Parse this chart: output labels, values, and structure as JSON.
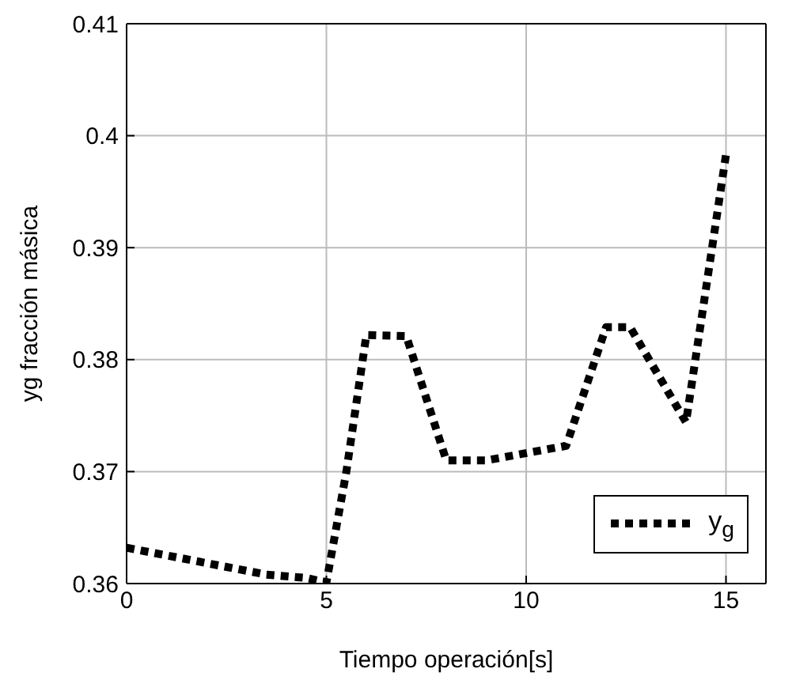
{
  "chart_data": {
    "type": "line",
    "xlabel": "Tiempo operación[s]",
    "ylabel": "yg fracción másica",
    "x": [
      0,
      3.5,
      4.5,
      5,
      5.5,
      6,
      7,
      8,
      9,
      11,
      12,
      12.6,
      14,
      15
    ],
    "series": [
      {
        "name": "y$_{g}$",
        "color": "#000000",
        "values": [
          0.3632,
          0.3608,
          0.3605,
          0.3601,
          0.37,
          0.3822,
          0.3821,
          0.371,
          0.371,
          0.3723,
          0.3829,
          0.3829,
          0.3744,
          0.3983
        ]
      }
    ],
    "xlim": [
      0,
      16
    ],
    "xticks": [
      0,
      5,
      10,
      15
    ],
    "ylim": [
      0.36,
      0.41
    ],
    "yticks": [
      0.36,
      0.37,
      0.38,
      0.39,
      0.4,
      0.41
    ],
    "grid": true,
    "legend": "bottom right",
    "line_style": "dotted",
    "marker": "none"
  }
}
